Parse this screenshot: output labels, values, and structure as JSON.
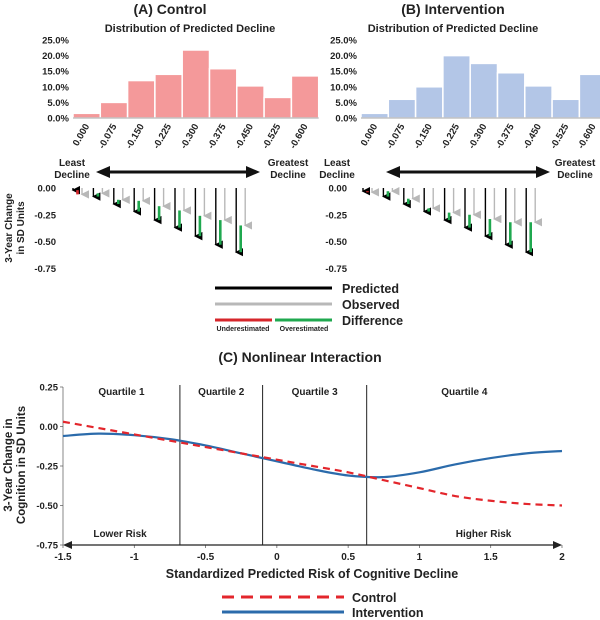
{
  "colors": {
    "control": "#f4999a",
    "intervention": "#b3c6e7",
    "predicted": "#000000",
    "observed": "#b8b8b8",
    "under": "#d6262b",
    "over": "#1fa84f",
    "curve_control": "#e3262c",
    "curve_intervention": "#2b6bab"
  },
  "chart_data": [
    {
      "panel": "A",
      "type": "bar",
      "title": "(A) Control",
      "subtitle": "Distribution of Predicted Decline",
      "categories": [
        "0.000",
        "-0.075",
        "-0.150",
        "-0.225",
        "-0.300",
        "-0.375",
        "-0.450",
        "-0.525",
        "-0.600"
      ],
      "values": [
        1.5,
        5.0,
        12.0,
        14.0,
        21.8,
        15.8,
        10.3,
        6.6,
        13.5
      ],
      "ylim": [
        0,
        25
      ],
      "yticks": [
        "0.0%",
        "5.0%",
        "10.0%",
        "15.0%",
        "20.0%",
        "25.0%"
      ],
      "least_label": [
        "Least",
        "Decline"
      ],
      "greatest_label": [
        "Greatest",
        "Decline"
      ],
      "change_ylabel": [
        "3-Year Change",
        "in SD Units"
      ],
      "change_yticks": [
        "0.00",
        "-0.25",
        "-0.50",
        "-0.75"
      ],
      "change_ylim": [
        -0.75,
        0
      ],
      "predicted": [
        -0.02,
        -0.08,
        -0.15,
        -0.22,
        -0.3,
        -0.37,
        -0.45,
        -0.53,
        -0.6
      ],
      "observed": [
        -0.06,
        -0.05,
        -0.11,
        -0.12,
        -0.17,
        -0.21,
        -0.26,
        -0.3,
        -0.35
      ]
    },
    {
      "panel": "B",
      "type": "bar",
      "title": "(B) Intervention",
      "subtitle": "Distribution of Predicted Decline",
      "categories": [
        "0.000",
        "-0.075",
        "-0.150",
        "-0.225",
        "-0.300",
        "-0.375",
        "-0.450",
        "-0.525",
        "-0.600"
      ],
      "values": [
        1.5,
        6.0,
        10.0,
        20.0,
        17.5,
        14.5,
        10.3,
        6.0,
        14.0
      ],
      "ylim": [
        0,
        25
      ],
      "yticks": [
        "0.0%",
        "5.0%",
        "10.0%",
        "15.0%",
        "20.0%",
        "25.0%"
      ],
      "least_label": [
        "Least",
        "Decline"
      ],
      "greatest_label": [
        "Greatest",
        "Decline"
      ],
      "change_ylabel": [
        "3-Year Change",
        "in SD Units"
      ],
      "change_yticks": [
        "0.00",
        "-0.25",
        "-0.50",
        "-0.75"
      ],
      "change_ylim": [
        -0.75,
        0
      ],
      "predicted": [
        -0.03,
        -0.08,
        -0.15,
        -0.22,
        -0.3,
        -0.37,
        -0.45,
        -0.53,
        -0.6
      ],
      "observed": [
        -0.04,
        -0.03,
        -0.1,
        -0.19,
        -0.23,
        -0.25,
        -0.29,
        -0.32,
        -0.32
      ]
    },
    {
      "panel": "C",
      "type": "line",
      "title": "(C) Nonlinear Interaction",
      "xlabel": "Standardized Predicted Risk of Cognitive Decline",
      "ylabel": [
        "3-Year Change in",
        "Cognition in SD Units"
      ],
      "xlim": [
        -1.5,
        2
      ],
      "ylim": [
        -0.75,
        0.25
      ],
      "xticks": [
        -1.5,
        -1,
        -0.5,
        0,
        0.5,
        1,
        1.5,
        2
      ],
      "xtick_labels": [
        "-1.5",
        "-1",
        "-0.5",
        "0",
        "0.5",
        "1",
        "1.5",
        "2"
      ],
      "yticks": [
        0.25,
        0,
        -0.25,
        -0.5,
        -0.75
      ],
      "ytick_labels": [
        "0.25",
        "0.00",
        "-0.25",
        "-0.50",
        "-0.75"
      ],
      "quartile_boundaries": [
        -0.68,
        -0.1,
        0.63
      ],
      "quartiles": [
        "Quartile 1",
        "Quartile 2",
        "Quartile 3",
        "Quartile 4"
      ],
      "lower_risk": "Lower Risk",
      "higher_risk": "Higher Risk",
      "series": [
        {
          "name": "Control",
          "x": [
            -1.5,
            -1.25,
            -1.0,
            -0.75,
            -0.5,
            -0.25,
            0.0,
            0.25,
            0.5,
            0.75,
            1.0,
            1.25,
            1.5,
            1.75,
            2.0
          ],
          "y": [
            0.03,
            -0.01,
            -0.05,
            -0.09,
            -0.13,
            -0.17,
            -0.21,
            -0.25,
            -0.29,
            -0.34,
            -0.39,
            -0.44,
            -0.47,
            -0.49,
            -0.5
          ]
        },
        {
          "name": "Intervention",
          "x": [
            -1.5,
            -1.25,
            -1.0,
            -0.75,
            -0.5,
            -0.25,
            0.0,
            0.25,
            0.5,
            0.75,
            1.0,
            1.25,
            1.5,
            1.75,
            2.0
          ],
          "y": [
            -0.06,
            -0.045,
            -0.055,
            -0.08,
            -0.12,
            -0.17,
            -0.22,
            -0.27,
            -0.31,
            -0.32,
            -0.29,
            -0.24,
            -0.2,
            -0.17,
            -0.155
          ]
        }
      ]
    }
  ],
  "legend_top": {
    "predicted": "Predicted",
    "observed": "Observed",
    "difference": "Difference",
    "under": "Underestimated",
    "over": "Overestimated"
  },
  "legend_bottom": {
    "control": "Control",
    "intervention": "Intervention"
  }
}
